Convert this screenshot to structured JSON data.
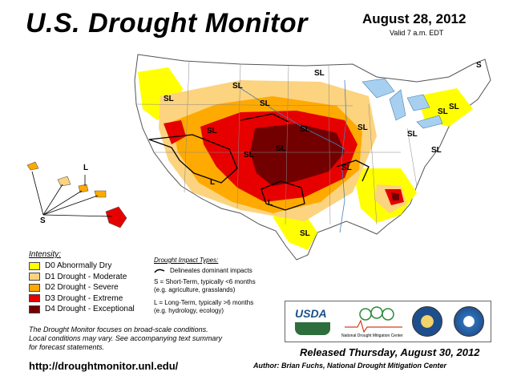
{
  "header": {
    "title": "U.S. Drought Monitor",
    "date": "August 28, 2012",
    "valid": "Valid 7 a.m. EDT"
  },
  "map": {
    "impact_labels": [
      "SL",
      "SL",
      "SL",
      "SL",
      "SL",
      "SL",
      "SL",
      "SL",
      "SL",
      "SL",
      "SL",
      "SL",
      "SL",
      "SL",
      "SL",
      "L",
      "L",
      "L",
      "S",
      "S"
    ],
    "colors": {
      "D0": "#ffff00",
      "D1": "#fcd37f",
      "D2": "#ffaa00",
      "D3": "#e60000",
      "D4": "#730000",
      "water": "#a7d0f0",
      "land": "#ffffff"
    }
  },
  "legend": {
    "title": "Intensity:",
    "items": [
      {
        "label": "D0 Abnormally Dry",
        "color": "#ffff00"
      },
      {
        "label": "D1 Drought - Moderate",
        "color": "#fcd37f"
      },
      {
        "label": "D2 Drought - Severe",
        "color": "#ffaa00"
      },
      {
        "label": "D3 Drought - Extreme",
        "color": "#e60000"
      },
      {
        "label": "D4 Drought - Exceptional",
        "color": "#730000"
      }
    ]
  },
  "impact_types": {
    "title": "Drought Impact Types:",
    "delineates": "Delineates dominant impacts",
    "short_term": "S = Short-Term, typically <6 months",
    "short_term_eg": "(e.g. agriculture, grasslands)",
    "long_term": "L = Long-Term, typically >6 months",
    "long_term_eg": "(e.g. hydrology, ecology)"
  },
  "note": {
    "line1": "The Drought Monitor focuses on broad-scale conditions.",
    "line2": "Local conditions may vary. See accompanying text summary",
    "line3": "for forecast statements."
  },
  "url": "http://droughtmonitor.unl.edu/",
  "logos": {
    "usda": "USDA",
    "ndmc": "National Drought Mitigation Center"
  },
  "released": "Released Thursday, August 30, 2012",
  "author": "Author: Brian Fuchs, National Drought Mitigation Center"
}
